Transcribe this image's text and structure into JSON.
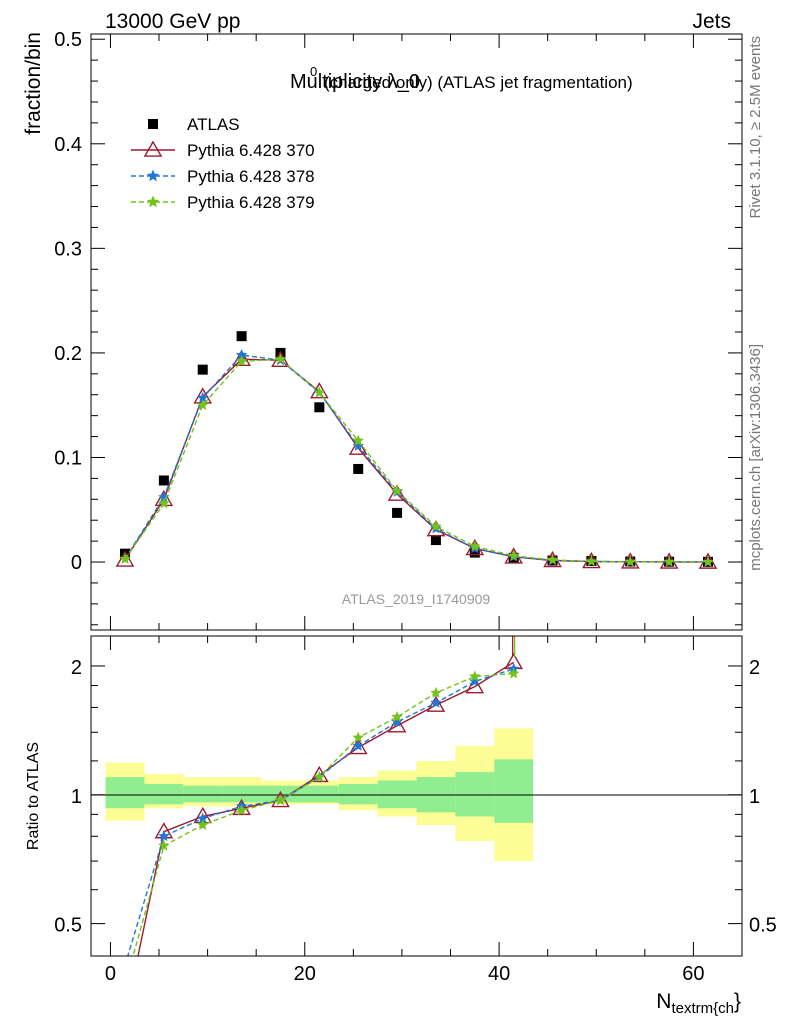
{
  "header": {
    "left": "13000 GeV pp",
    "right": "Jets"
  },
  "side_labels": {
    "rivet": "Rivet 3.1.10, ≥ 2.5M events",
    "mcplots": "mcplots.cern.ch [arXiv:1306.3436]"
  },
  "chart_data": [
    {
      "type": "scatter",
      "title": "Multiplicity λ_0",
      "title_superscript": "0",
      "subtitle": "(charged only) (ATLAS jet fragmentation)",
      "ylabel": "fraction/bin",
      "ylim": [
        -0.065,
        0.505
      ],
      "yticks": [
        0,
        0.1,
        0.2,
        0.3,
        0.4,
        0.5
      ],
      "ytick_labels": [
        "0",
        "0.1",
        "0.2",
        "0.3",
        "0.4",
        "0.5"
      ],
      "xlim": [
        -2,
        65
      ],
      "watermark": "ATLAS_2019_I1740909",
      "legend_position": "top-left",
      "x": [
        1.5,
        5.5,
        9.5,
        13.5,
        17.5,
        21.5,
        25.5,
        29.5,
        33.5,
        37.5,
        41.5,
        45.5,
        49.5,
        53.5,
        57.5,
        61.5
      ],
      "series": [
        {
          "name": "ATLAS",
          "color": "#000000",
          "marker": "square",
          "line": "none",
          "values": [
            0.008,
            0.078,
            0.184,
            0.216,
            0.2,
            0.148,
            0.089,
            0.047,
            0.021,
            0.009,
            0.004,
            0.0015,
            0.001,
            0.0005,
            0.0003,
            0.0002
          ]
        },
        {
          "name": "Pythia 6.428 370",
          "color": "#9b1c2e",
          "marker": "triangle-open",
          "line": "solid",
          "values": [
            0.002,
            0.06,
            0.158,
            0.194,
            0.193,
            0.163,
            0.109,
            0.065,
            0.031,
            0.013,
            0.005,
            0.0015,
            0.0005,
            0.0002,
            0.0001,
            0.0
          ]
        },
        {
          "name": "Pythia 6.428 378",
          "color": "#1f77d8",
          "marker": "star",
          "line": "dashed",
          "values": [
            0.003,
            0.062,
            0.157,
            0.198,
            0.193,
            0.162,
            0.111,
            0.067,
            0.032,
            0.013,
            0.005,
            0.0016,
            0.0005,
            0.0002,
            0.0001,
            0.0
          ]
        },
        {
          "name": "Pythia 6.428 379",
          "color": "#74c21c",
          "marker": "star",
          "line": "dashed",
          "values": [
            0.003,
            0.056,
            0.15,
            0.192,
            0.194,
            0.162,
            0.116,
            0.068,
            0.034,
            0.015,
            0.006,
            0.002,
            0.0006,
            0.0002,
            0.0001,
            0.0
          ]
        }
      ]
    },
    {
      "type": "line",
      "ylabel": "Ratio to ATLAS",
      "xlabel": "N",
      "xlabel_sub": "textrm{ch",
      "xlabel_tail": "}",
      "ylog": true,
      "ylim": [
        0.42,
        2.35
      ],
      "yticks": [
        0.5,
        1,
        2
      ],
      "ytick_labels": [
        "0.5",
        "1",
        "2"
      ],
      "xlim": [
        -2,
        65
      ],
      "xticks": [
        0,
        20,
        40,
        60
      ],
      "xtick_labels": [
        "0",
        "20",
        "40",
        "60"
      ],
      "band_edges": [
        -0.5,
        3.5,
        7.5,
        11.5,
        15.5,
        19.5,
        23.5,
        27.5,
        31.5,
        35.5,
        39.5,
        43.5
      ],
      "band_inner": [
        [
          0.93,
          1.1
        ],
        [
          0.95,
          1.06
        ],
        [
          0.96,
          1.05
        ],
        [
          0.96,
          1.05
        ],
        [
          0.96,
          1.05
        ],
        [
          0.96,
          1.05
        ],
        [
          0.95,
          1.06
        ],
        [
          0.93,
          1.08
        ],
        [
          0.91,
          1.1
        ],
        [
          0.89,
          1.13
        ],
        [
          0.86,
          1.21
        ]
      ],
      "band_outer": [
        [
          0.87,
          1.19
        ],
        [
          0.93,
          1.12
        ],
        [
          0.94,
          1.1
        ],
        [
          0.94,
          1.1
        ],
        [
          0.95,
          1.08
        ],
        [
          0.95,
          1.08
        ],
        [
          0.92,
          1.1
        ],
        [
          0.89,
          1.14
        ],
        [
          0.85,
          1.2
        ],
        [
          0.78,
          1.3
        ],
        [
          0.7,
          1.43
        ]
      ],
      "band_colors": {
        "inner": "#90ee90",
        "outer": "#fdfd96"
      },
      "reference": 1,
      "x": [
        1.5,
        5.5,
        9.5,
        13.5,
        17.5,
        21.5,
        25.5,
        29.5,
        33.5,
        37.5,
        41.5
      ],
      "series": [
        {
          "name": "Pythia 6.428 370",
          "color": "#9b1c2e",
          "marker": "triangle-open",
          "line": "solid",
          "values": [
            0.3,
            0.82,
            0.89,
            0.93,
            0.97,
            1.11,
            1.29,
            1.45,
            1.62,
            1.79,
            2.04
          ]
        },
        {
          "name": "Pythia 6.428 378",
          "color": "#1f77d8",
          "marker": "star",
          "line": "dashed",
          "values": [
            0.4,
            0.8,
            0.88,
            0.94,
            0.97,
            1.1,
            1.3,
            1.48,
            1.64,
            1.84,
            1.97
          ]
        },
        {
          "name": "Pythia 6.428 379",
          "color": "#74c21c",
          "marker": "star",
          "line": "dashed",
          "values": [
            0.36,
            0.76,
            0.85,
            0.92,
            0.97,
            1.1,
            1.36,
            1.52,
            1.73,
            1.89,
            1.92
          ]
        }
      ],
      "offscale_up": {
        "x": 41.5,
        "colors": [
          "#9b1c2e",
          "#74c21c"
        ]
      }
    }
  ]
}
